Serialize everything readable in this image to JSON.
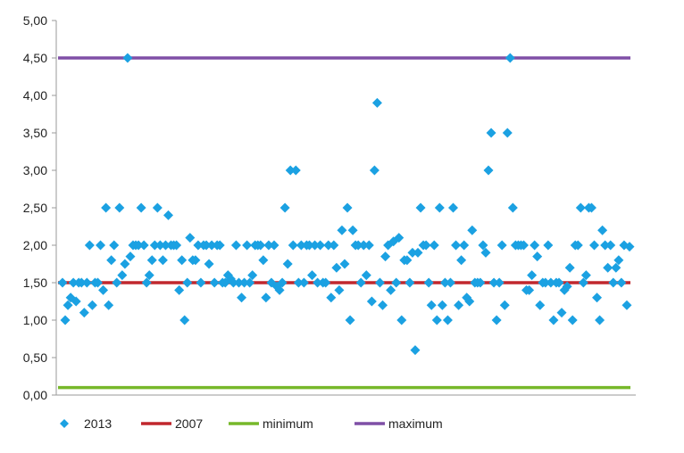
{
  "chart_data": {
    "type": "scatter",
    "title": "",
    "xlabel": "",
    "ylabel": "",
    "ylim": [
      0,
      5
    ],
    "y_ticks": [
      "0,00",
      "0,50",
      "1,00",
      "1,50",
      "2,00",
      "2,50",
      "3,00",
      "3,50",
      "4,00",
      "4,50",
      "5,00"
    ],
    "grid": false,
    "legend_position": "bottom",
    "series": [
      {
        "name": "2013",
        "kind": "points",
        "color": "#1ba1e2",
        "marker": "diamond",
        "points": [
          [
            1,
            1.5
          ],
          [
            2,
            1.0
          ],
          [
            3,
            1.2
          ],
          [
            4,
            1.3
          ],
          [
            5,
            1.5
          ],
          [
            6,
            1.25
          ],
          [
            7,
            1.5
          ],
          [
            8,
            1.5
          ],
          [
            9,
            1.1
          ],
          [
            10,
            1.5
          ],
          [
            11,
            2.0
          ],
          [
            12,
            1.2
          ],
          [
            13,
            1.5
          ],
          [
            14,
            1.5
          ],
          [
            15,
            2.0
          ],
          [
            16,
            1.4
          ],
          [
            17,
            2.5
          ],
          [
            18,
            1.2
          ],
          [
            19,
            1.8
          ],
          [
            20,
            2.0
          ],
          [
            21,
            1.5
          ],
          [
            22,
            2.5
          ],
          [
            23,
            1.6
          ],
          [
            24,
            1.75
          ],
          [
            25,
            4.5
          ],
          [
            26,
            1.85
          ],
          [
            27,
            2.0
          ],
          [
            28,
            2.0
          ],
          [
            29,
            2.0
          ],
          [
            30,
            2.5
          ],
          [
            31,
            2.0
          ],
          [
            32,
            1.5
          ],
          [
            33,
            1.6
          ],
          [
            34,
            1.8
          ],
          [
            35,
            2.0
          ],
          [
            36,
            2.5
          ],
          [
            37,
            2.0
          ],
          [
            38,
            1.8
          ],
          [
            39,
            2.0
          ],
          [
            40,
            2.4
          ],
          [
            41,
            2.0
          ],
          [
            42,
            2.0
          ],
          [
            43,
            2.0
          ],
          [
            44,
            1.4
          ],
          [
            45,
            1.8
          ],
          [
            46,
            1.0
          ],
          [
            47,
            1.5
          ],
          [
            48,
            2.1
          ],
          [
            49,
            1.8
          ],
          [
            50,
            1.8
          ],
          [
            51,
            2.0
          ],
          [
            52,
            1.5
          ],
          [
            53,
            2.0
          ],
          [
            54,
            2.0
          ],
          [
            55,
            1.75
          ],
          [
            56,
            2.0
          ],
          [
            57,
            1.5
          ],
          [
            58,
            2.0
          ],
          [
            59,
            2.0
          ],
          [
            60,
            1.5
          ],
          [
            61,
            1.5
          ],
          [
            62,
            1.6
          ],
          [
            63,
            1.55
          ],
          [
            64,
            1.5
          ],
          [
            65,
            2.0
          ],
          [
            66,
            1.5
          ],
          [
            67,
            1.3
          ],
          [
            68,
            1.5
          ],
          [
            69,
            2.0
          ],
          [
            70,
            1.5
          ],
          [
            71,
            1.6
          ],
          [
            72,
            2.0
          ],
          [
            73,
            2.0
          ],
          [
            74,
            2.0
          ],
          [
            75,
            1.8
          ],
          [
            76,
            1.3
          ],
          [
            77,
            2.0
          ],
          [
            78,
            1.5
          ],
          [
            79,
            2.0
          ],
          [
            80,
            1.45
          ],
          [
            81,
            1.4
          ],
          [
            82,
            1.5
          ],
          [
            83,
            2.5
          ],
          [
            84,
            1.75
          ],
          [
            85,
            3.0
          ],
          [
            86,
            2.0
          ],
          [
            87,
            3.0
          ],
          [
            88,
            1.5
          ],
          [
            89,
            2.0
          ],
          [
            90,
            1.5
          ],
          [
            91,
            2.0
          ],
          [
            92,
            2.0
          ],
          [
            93,
            1.6
          ],
          [
            94,
            2.0
          ],
          [
            95,
            1.5
          ],
          [
            96,
            2.0
          ],
          [
            97,
            1.5
          ],
          [
            98,
            1.5
          ],
          [
            99,
            2.0
          ],
          [
            100,
            1.3
          ],
          [
            101,
            2.0
          ],
          [
            102,
            1.7
          ],
          [
            103,
            1.4
          ],
          [
            104,
            2.2
          ],
          [
            105,
            1.75
          ],
          [
            106,
            2.5
          ],
          [
            107,
            1.0
          ],
          [
            108,
            2.2
          ],
          [
            109,
            2.0
          ],
          [
            110,
            2.0
          ],
          [
            111,
            1.5
          ],
          [
            112,
            2.0
          ],
          [
            113,
            1.6
          ],
          [
            114,
            2.0
          ],
          [
            115,
            1.25
          ],
          [
            116,
            3.0
          ],
          [
            117,
            3.9
          ],
          [
            118,
            1.5
          ],
          [
            119,
            1.2
          ],
          [
            120,
            1.85
          ],
          [
            121,
            2.0
          ],
          [
            122,
            1.4
          ],
          [
            123,
            2.05
          ],
          [
            124,
            1.5
          ],
          [
            125,
            2.1
          ],
          [
            126,
            1.0
          ],
          [
            127,
            1.8
          ],
          [
            128,
            1.8
          ],
          [
            129,
            1.5
          ],
          [
            130,
            1.9
          ],
          [
            131,
            0.6
          ],
          [
            132,
            1.9
          ],
          [
            133,
            2.5
          ],
          [
            134,
            2.0
          ],
          [
            135,
            2.0
          ],
          [
            136,
            1.5
          ],
          [
            137,
            1.2
          ],
          [
            138,
            2.0
          ],
          [
            139,
            1.0
          ],
          [
            140,
            2.5
          ],
          [
            141,
            1.2
          ],
          [
            142,
            1.5
          ],
          [
            143,
            1.0
          ],
          [
            144,
            1.5
          ],
          [
            145,
            2.5
          ],
          [
            146,
            2.0
          ],
          [
            147,
            1.2
          ],
          [
            148,
            1.8
          ],
          [
            149,
            2.0
          ],
          [
            150,
            1.3
          ],
          [
            151,
            1.25
          ],
          [
            152,
            2.2
          ],
          [
            153,
            1.5
          ],
          [
            154,
            1.5
          ],
          [
            155,
            1.5
          ],
          [
            156,
            2.0
          ],
          [
            157,
            1.9
          ],
          [
            158,
            3.0
          ],
          [
            159,
            3.5
          ],
          [
            160,
            1.5
          ],
          [
            161,
            1.0
          ],
          [
            162,
            1.5
          ],
          [
            163,
            2.0
          ],
          [
            164,
            1.2
          ],
          [
            165,
            3.5
          ],
          [
            166,
            4.5
          ],
          [
            167,
            2.5
          ],
          [
            168,
            2.0
          ],
          [
            169,
            2.0
          ],
          [
            170,
            2.0
          ],
          [
            171,
            2.0
          ],
          [
            172,
            1.4
          ],
          [
            173,
            1.4
          ],
          [
            174,
            1.6
          ],
          [
            175,
            2.0
          ],
          [
            176,
            1.85
          ],
          [
            177,
            1.2
          ],
          [
            178,
            1.5
          ],
          [
            179,
            1.5
          ],
          [
            180,
            2.0
          ],
          [
            181,
            1.5
          ],
          [
            182,
            1.0
          ],
          [
            183,
            1.5
          ],
          [
            184,
            1.5
          ],
          [
            185,
            1.1
          ],
          [
            186,
            1.4
          ],
          [
            187,
            1.45
          ],
          [
            188,
            1.7
          ],
          [
            189,
            1.0
          ],
          [
            190,
            2.0
          ],
          [
            191,
            2.0
          ],
          [
            192,
            2.5
          ],
          [
            193,
            1.5
          ],
          [
            194,
            1.6
          ],
          [
            195,
            2.5
          ],
          [
            196,
            2.5
          ],
          [
            197,
            2.0
          ],
          [
            198,
            1.3
          ],
          [
            199,
            1.0
          ],
          [
            200,
            2.2
          ],
          [
            201,
            2.0
          ],
          [
            202,
            1.7
          ],
          [
            203,
            2.0
          ],
          [
            204,
            1.5
          ],
          [
            205,
            1.7
          ],
          [
            206,
            1.8
          ],
          [
            207,
            1.5
          ],
          [
            208,
            2.0
          ],
          [
            209,
            1.2
          ],
          [
            210,
            1.98
          ]
        ]
      },
      {
        "name": "2007",
        "kind": "line",
        "color": "#c0272d",
        "value": 1.5
      },
      {
        "name": "minimum",
        "kind": "line",
        "color": "#76b82a",
        "value": 0.1
      },
      {
        "name": "maximum",
        "kind": "line",
        "color": "#7f4fa6",
        "value": 4.5
      }
    ]
  }
}
